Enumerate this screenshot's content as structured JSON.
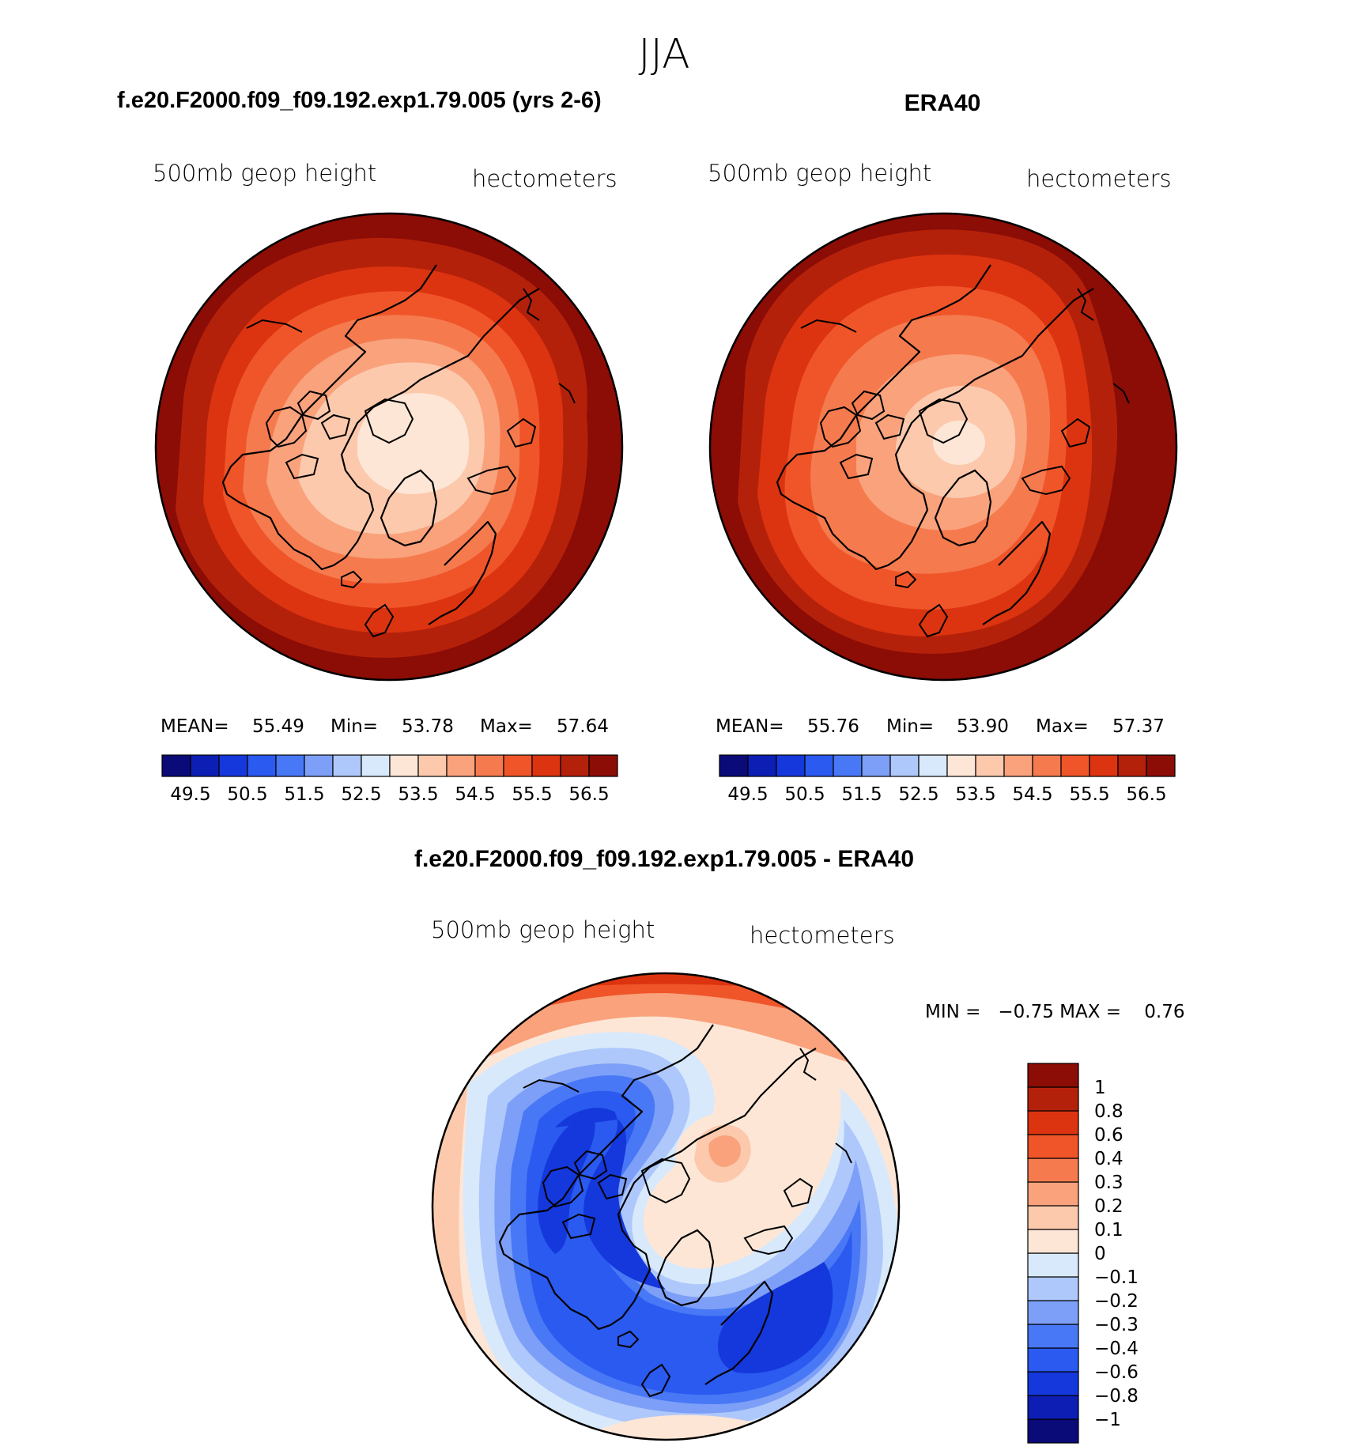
{
  "figure_title": "JJA",
  "panels": [
    {
      "title": "f.e20.F2000.f09_f09.192.exp1.79.005 (yrs 2-6)",
      "variable": "500mb geop height",
      "units": "hectometers",
      "stats": {
        "mean_label": "MEAN=",
        "mean": "55.49",
        "min_label": "Min=",
        "min": "53.78",
        "max_label": "Max=",
        "max": "57.64"
      }
    },
    {
      "title": "ERA40",
      "variable": "500mb geop height",
      "units": "hectometers",
      "stats": {
        "mean_label": "MEAN=",
        "mean": "55.76",
        "min_label": "Min=",
        "min": "53.90",
        "max_label": "Max=",
        "max": "57.37"
      }
    },
    {
      "title": "f.e20.F2000.f09_f09.192.exp1.79.005 - ERA40",
      "variable": "500mb geop height",
      "units": "hectometers",
      "stats_text": "MIN =   −0.75 MAX =    0.76"
    }
  ],
  "colorbar_abs": {
    "colors": [
      "#0a0a78",
      "#0c1eb4",
      "#1438dc",
      "#2a5af0",
      "#4878f5",
      "#7d9ff7",
      "#aec8fb",
      "#d8e9fc",
      "#fde6d6",
      "#fcc9ad",
      "#f9a27c",
      "#f57b4f",
      "#f0552a",
      "#dc3410",
      "#b4210a",
      "#8c0c06"
    ],
    "tick_labels": [
      "49.5",
      "50.5",
      "51.5",
      "52.5",
      "53.5",
      "54.5",
      "55.5",
      "56.5"
    ]
  },
  "colorbar_diff": {
    "colors_bottom_to_top": [
      "#0a0a78",
      "#0c1eb4",
      "#1438dc",
      "#2a5af0",
      "#4878f5",
      "#7d9ff7",
      "#aec8fb",
      "#d8e9fc",
      "#fde6d6",
      "#fcc9ad",
      "#f9a27c",
      "#f57b4f",
      "#f0552a",
      "#dc3410",
      "#b4210a",
      "#8c0c06"
    ],
    "tick_labels_top_to_bottom": [
      "1",
      "0.8",
      "0.6",
      "0.4",
      "0.3",
      "0.2",
      "0.1",
      "0",
      "−0.1",
      "−0.2",
      "−0.3",
      "−0.4",
      "−0.6",
      "−0.8",
      "−1"
    ]
  }
}
